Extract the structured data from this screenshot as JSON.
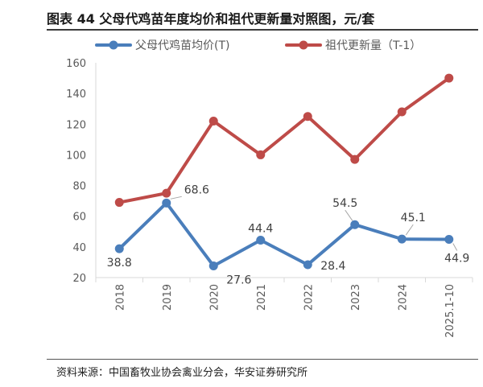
{
  "header": {
    "title": "图表 44  父母代鸡苗年度均价和祖代更新量对照图，元/套"
  },
  "footer": {
    "source": "资料来源：中国畜牧业协会禽业分会，华安证券研究所"
  },
  "chart_data": {
    "type": "line",
    "title": "图表 44  父母代鸡苗年度均价和祖代更新量对照图，元/套",
    "categories": [
      "2018",
      "2019",
      "2020",
      "2021",
      "2022",
      "2023",
      "2024",
      "2025.1-10"
    ],
    "ylim": [
      20,
      160
    ],
    "yticks": [
      20,
      40,
      60,
      80,
      100,
      120,
      140,
      160
    ],
    "grid": false,
    "legend": "top",
    "series": [
      {
        "name": "父母代鸡苗均价(T)",
        "color": "#4a7ebb",
        "values": [
          38.8,
          68.6,
          27.6,
          44.4,
          28.4,
          54.5,
          45.1,
          44.9
        ],
        "labels": [
          "38.8",
          "68.6",
          "27.6",
          "44.4",
          "28.4",
          "54.5",
          "45.1",
          "44.9"
        ]
      },
      {
        "name": "祖代更新量（T-1）",
        "color": "#be4b48",
        "values": [
          69,
          75,
          122,
          100,
          125,
          97,
          128,
          150
        ]
      }
    ]
  }
}
